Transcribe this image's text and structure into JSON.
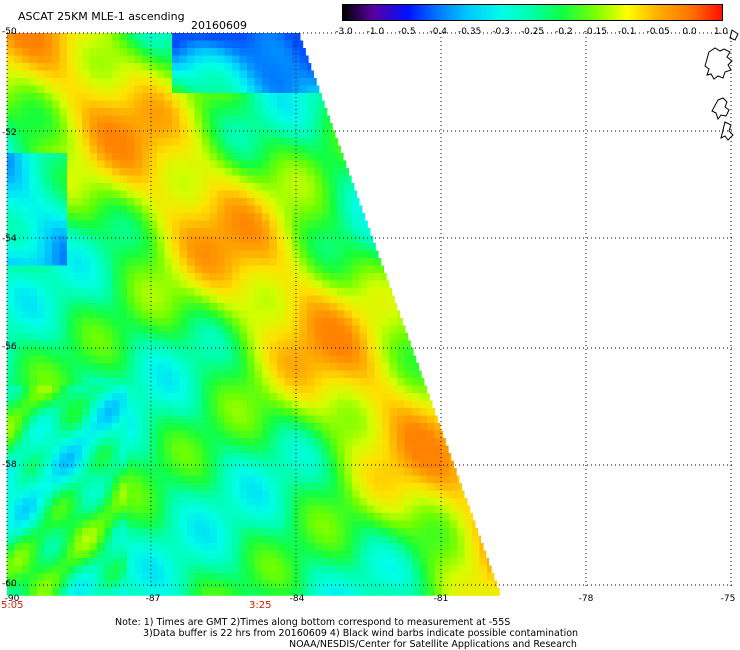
{
  "header": {
    "title": "ASCAT 25KM MLE-1 ascending",
    "date": "20160609"
  },
  "colorbar": {
    "labels": [
      "-3.0",
      "-1.0",
      "-0.5",
      "-0.4",
      "-0.35",
      "-0.3",
      "-0.25",
      "-0.2",
      "-0.15",
      "-0.1",
      "-0.05",
      "0.0",
      "1.0"
    ],
    "colors": [
      "#000000",
      "#5a00a0",
      "#0010ff",
      "#0078ff",
      "#00c8ff",
      "#00ffe6",
      "#00ffaa",
      "#10ff40",
      "#80ff00",
      "#ffff00",
      "#ffb000",
      "#ff7000",
      "#ff1000"
    ]
  },
  "map": {
    "lat_labels": [
      "-50",
      "-52",
      "-54",
      "-56",
      "-58",
      "-60"
    ],
    "lon_labels": [
      "-90",
      "-87",
      "-84",
      "-81",
      "-78",
      "-75"
    ],
    "grid": true,
    "times": [
      "5:05",
      "3:25"
    ]
  },
  "notes": {
    "line1": "Note: 1) Times are GMT 2)Times along bottom correspond to measurement at -55S",
    "line2": "3)Data buffer is 22 hrs from 20160609 4) Black wind barbs indicate possible contamination",
    "line3": "NOAA/NESDIS/Center for Satellite Applications and Research"
  }
}
